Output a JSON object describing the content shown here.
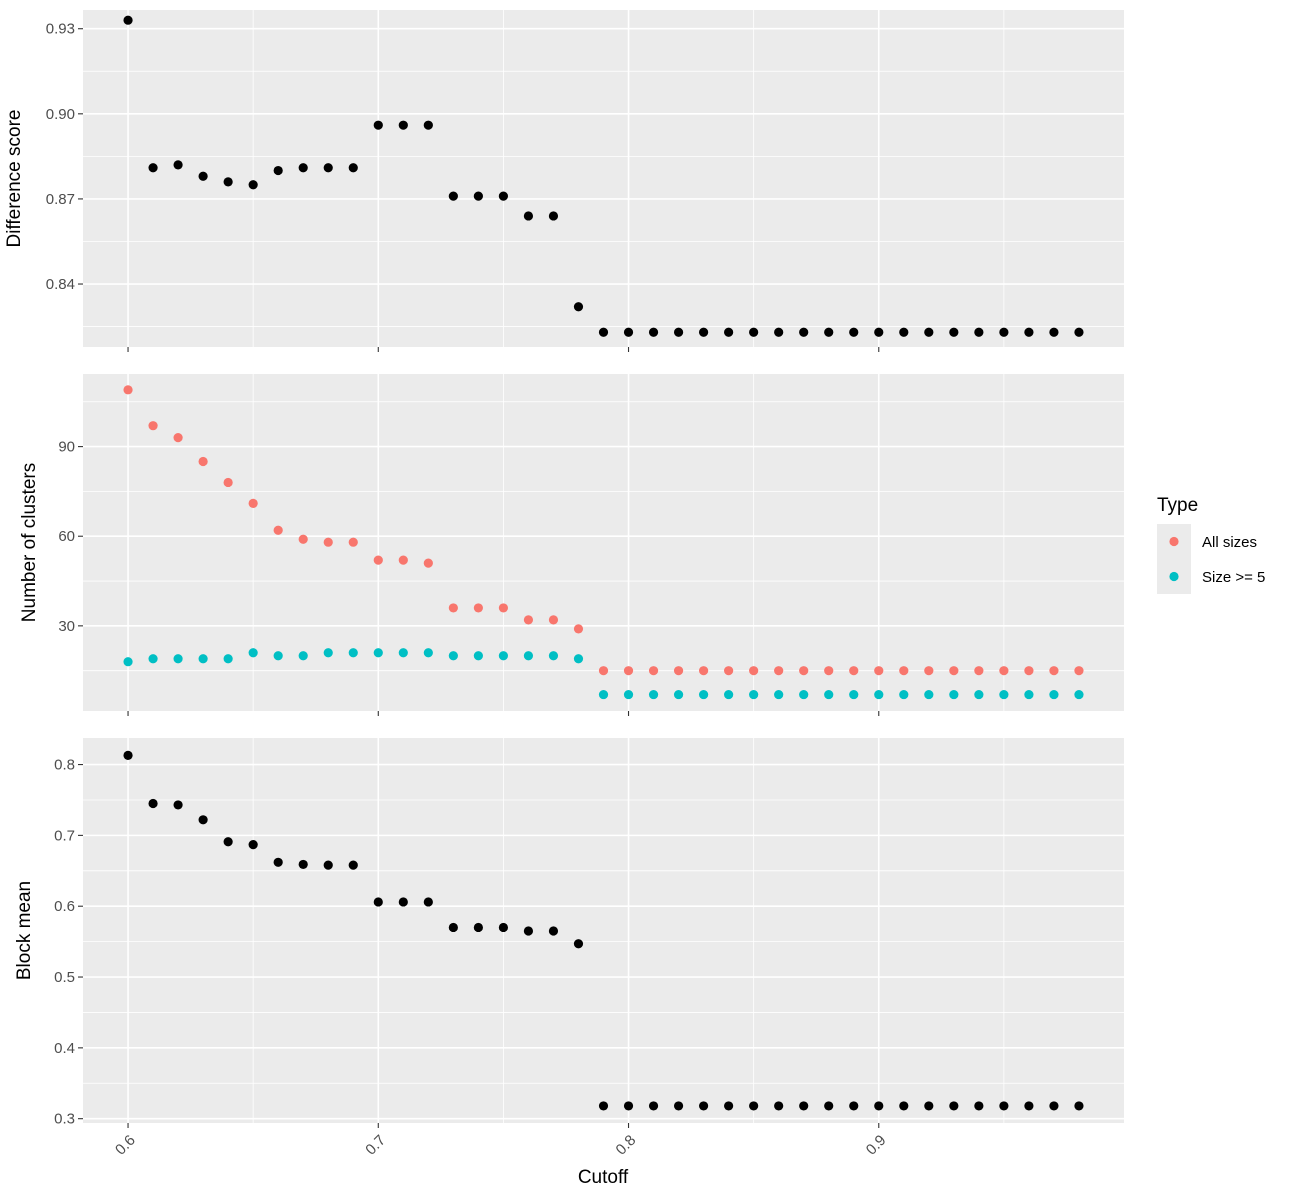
{
  "chart_data": {
    "type": "scatter",
    "xlabel": "Cutoff",
    "x": [
      0.6,
      0.61,
      0.62,
      0.63,
      0.64,
      0.65,
      0.66,
      0.67,
      0.68,
      0.69,
      0.7,
      0.71,
      0.72,
      0.73,
      0.74,
      0.75,
      0.76,
      0.77,
      0.78,
      0.79,
      0.8,
      0.81,
      0.82,
      0.83,
      0.84,
      0.85,
      0.86,
      0.87,
      0.88,
      0.89,
      0.9,
      0.91,
      0.92,
      0.93,
      0.94,
      0.95,
      0.96,
      0.97,
      0.98
    ],
    "xlim": [
      0.582,
      0.998
    ],
    "xticks": [
      0.6,
      0.7,
      0.8,
      0.9
    ],
    "xtick_labels": [
      "0.6",
      "0.7",
      "0.8",
      "0.9"
    ],
    "grid": true,
    "panels": [
      {
        "ylabel": "Difference score",
        "ylim": [
          0.8178,
          0.9366
        ],
        "yticks": [
          0.84,
          0.87,
          0.9,
          0.93
        ],
        "ytick_labels": [
          "0.84",
          "0.87",
          "0.90",
          "0.93"
        ],
        "series": [
          {
            "color": "#000000",
            "values": [
              0.933,
              0.881,
              0.882,
              0.878,
              0.876,
              0.875,
              0.88,
              0.881,
              0.881,
              0.881,
              0.896,
              0.896,
              0.896,
              0.871,
              0.871,
              0.871,
              0.864,
              0.864,
              0.832,
              0.823,
              0.823,
              0.823,
              0.823,
              0.823,
              0.823,
              0.823,
              0.823,
              0.823,
              0.823,
              0.823,
              0.823,
              0.823,
              0.823,
              0.823,
              0.823,
              0.823,
              0.823,
              0.823,
              0.823
            ]
          }
        ]
      },
      {
        "ylabel": "Number of clusters",
        "ylim": [
          1.5,
          114.3
        ],
        "yticks": [
          30,
          60,
          90
        ],
        "ytick_labels": [
          "30",
          "60",
          "90"
        ],
        "series": [
          {
            "name": "All sizes",
            "color": "#f8766d",
            "values": [
              109,
              97,
              93,
              85,
              78,
              71,
              62,
              59,
              58,
              58,
              52,
              52,
              51,
              36,
              36,
              36,
              32,
              32,
              29,
              15,
              15,
              15,
              15,
              15,
              15,
              15,
              15,
              15,
              15,
              15,
              15,
              15,
              15,
              15,
              15,
              15,
              15,
              15,
              15
            ]
          },
          {
            "name": "Size >= 5",
            "color": "#00bfc4",
            "values": [
              18,
              19,
              19,
              19,
              19,
              21,
              20,
              20,
              21,
              21,
              21,
              21,
              21,
              20,
              20,
              20,
              20,
              20,
              19,
              7,
              7,
              7,
              7,
              7,
              7,
              7,
              7,
              7,
              7,
              7,
              7,
              7,
              7,
              7,
              7,
              7,
              7,
              7,
              7
            ]
          }
        ]
      },
      {
        "ylabel": "Block mean",
        "ylim": [
          0.2939,
          0.8375
        ],
        "yticks": [
          0.3,
          0.4,
          0.5,
          0.6,
          0.7,
          0.8
        ],
        "ytick_labels": [
          "0.3",
          "0.4",
          "0.5",
          "0.6",
          "0.7",
          "0.8"
        ],
        "series": [
          {
            "color": "#000000",
            "values": [
              0.813,
              0.745,
              0.743,
              0.722,
              0.691,
              0.687,
              0.662,
              0.659,
              0.658,
              0.658,
              0.606,
              0.606,
              0.606,
              0.57,
              0.57,
              0.57,
              0.565,
              0.565,
              0.547,
              0.318,
              0.318,
              0.318,
              0.318,
              0.318,
              0.318,
              0.318,
              0.318,
              0.318,
              0.318,
              0.318,
              0.318,
              0.318,
              0.318,
              0.318,
              0.318,
              0.318,
              0.318,
              0.318,
              0.318
            ]
          }
        ]
      }
    ],
    "legend": {
      "title": "Type",
      "placement": "right",
      "entries": [
        {
          "label": "All sizes",
          "color": "#f8766d"
        },
        {
          "label": "Size >= 5",
          "color": "#00bfc4"
        }
      ]
    }
  }
}
